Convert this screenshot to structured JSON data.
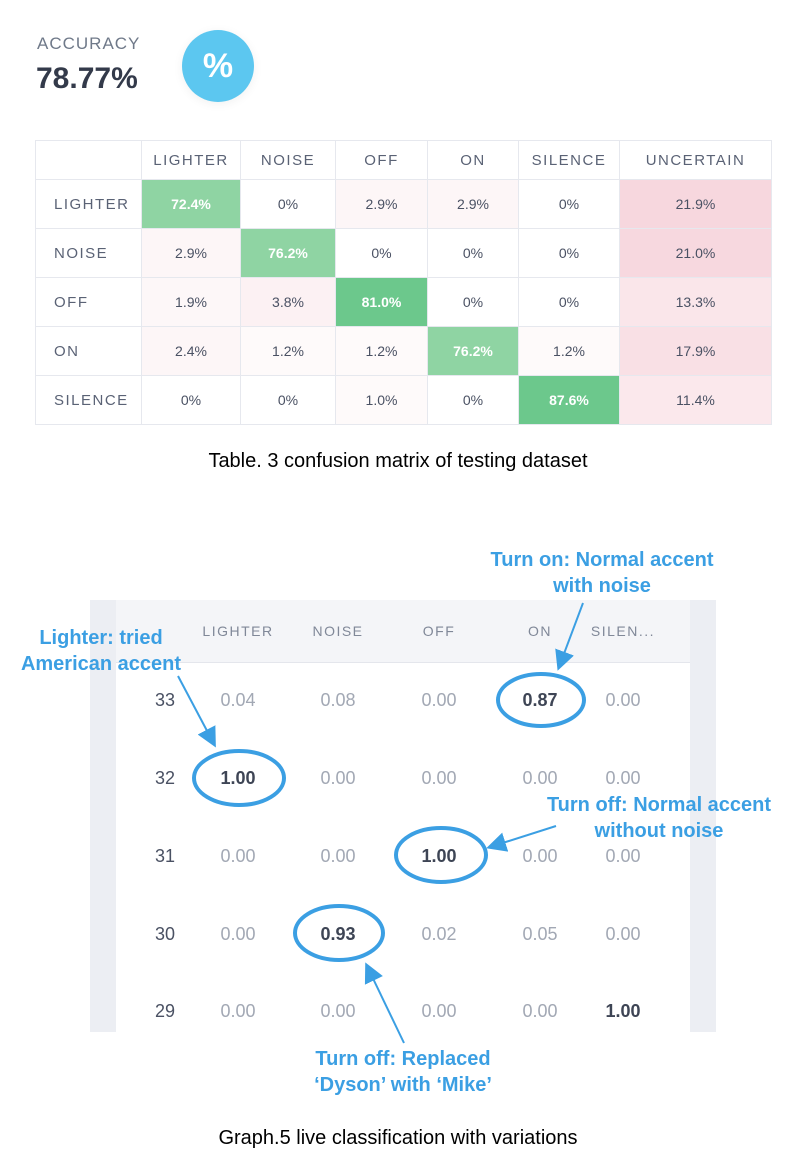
{
  "accuracy": {
    "label": "ACCURACY",
    "value": "78.77%",
    "badge": "%"
  },
  "confusion": {
    "columns": [
      "LIGHTER",
      "NOISE",
      "OFF",
      "ON",
      "SILENCE",
      "UNCERTAIN"
    ],
    "rows": [
      {
        "label": "LIGHTER",
        "cells": [
          "72.4%",
          "0%",
          "2.9%",
          "2.9%",
          "0%",
          "21.9%"
        ]
      },
      {
        "label": "NOISE",
        "cells": [
          "2.9%",
          "76.2%",
          "0%",
          "0%",
          "0%",
          "21.0%"
        ]
      },
      {
        "label": "OFF",
        "cells": [
          "1.9%",
          "3.8%",
          "81.0%",
          "0%",
          "0%",
          "13.3%"
        ]
      },
      {
        "label": "ON",
        "cells": [
          "2.4%",
          "1.2%",
          "1.2%",
          "76.2%",
          "1.2%",
          "17.9%"
        ]
      },
      {
        "label": "SILENCE",
        "cells": [
          "0%",
          "0%",
          "1.0%",
          "0%",
          "87.6%",
          "11.4%"
        ]
      }
    ],
    "caption": "Table. 3 confusion matrix of testing dataset"
  },
  "live": {
    "columns": [
      "LIGHTER",
      "NOISE",
      "OFF",
      "ON",
      "SILEN..."
    ],
    "rows": [
      {
        "id": "33",
        "values": [
          "0.04",
          "0.08",
          "0.00",
          "0.87",
          "0.00"
        ]
      },
      {
        "id": "32",
        "values": [
          "1.00",
          "0.00",
          "0.00",
          "0.00",
          "0.00"
        ]
      },
      {
        "id": "31",
        "values": [
          "0.00",
          "0.00",
          "1.00",
          "0.00",
          "0.00"
        ]
      },
      {
        "id": "30",
        "values": [
          "0.00",
          "0.93",
          "0.02",
          "0.05",
          "0.00"
        ]
      },
      {
        "id": "29",
        "values": [
          "0.00",
          "0.00",
          "0.00",
          "0.00",
          "1.00"
        ]
      }
    ],
    "annotations": {
      "turn_on": [
        "Turn on: Normal accent",
        "with noise"
      ],
      "lighter": [
        "Lighter: tried",
        "American accent"
      ],
      "turn_off_1": [
        "Turn off: Normal accent",
        "without noise"
      ],
      "turn_off_2": [
        "Turn off: Replaced",
        "‘Dyson’ with ‘Mike’"
      ]
    },
    "caption": "Graph.5 live classification with variations",
    "accent_color": "#3b9fe3"
  }
}
